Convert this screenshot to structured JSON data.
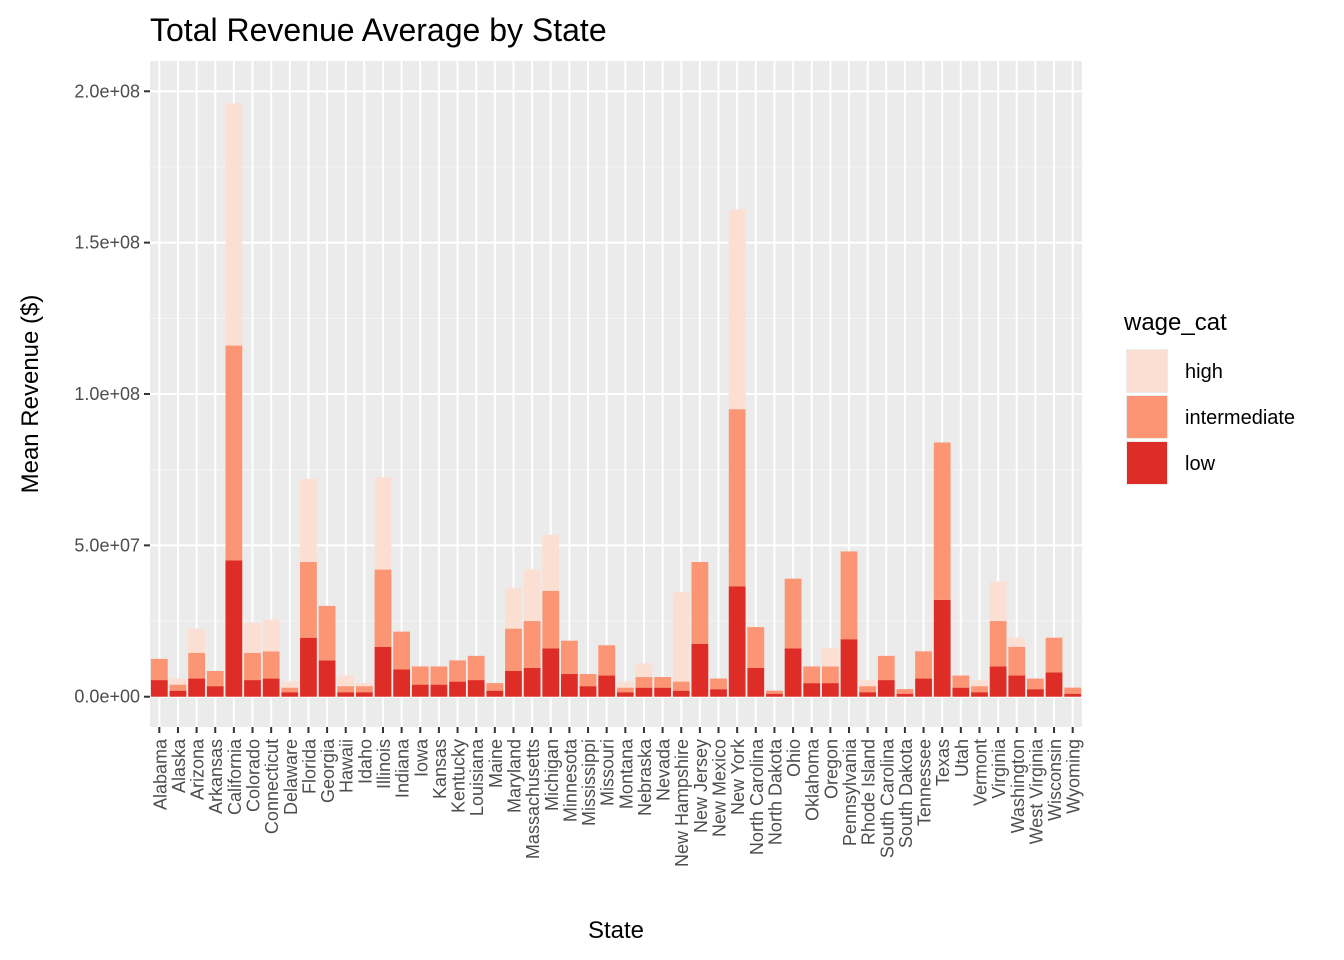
{
  "chart_data": {
    "type": "bar",
    "stacked": true,
    "title": "Total Revenue Average by State",
    "xlabel": "State",
    "ylabel": "Mean Revenue ($)",
    "ylim": [
      -10000000,
      210000000
    ],
    "y_ticks": [
      0,
      50000000,
      100000000,
      150000000,
      200000000
    ],
    "y_tick_labels": [
      "0.0e+00",
      "5.0e+07",
      "1.0e+08",
      "1.5e+08",
      "2.0e+08"
    ],
    "grid": true,
    "legend": {
      "title": "wage_cat",
      "position": "right",
      "entries": [
        "high",
        "intermediate",
        "low"
      ]
    },
    "colors": {
      "high": "#fcdfd3",
      "intermediate": "#fb9574",
      "low": "#de2d26",
      "panel": "#ebebeb",
      "grid_major": "#ffffff"
    },
    "categories": [
      "Alabama",
      "Alaska",
      "Arizona",
      "Arkansas",
      "California",
      "Colorado",
      "Connecticut",
      "Delaware",
      "Florida",
      "Georgia",
      "Hawaii",
      "Idaho",
      "Illinois",
      "Indiana",
      "Iowa",
      "Kansas",
      "Kentucky",
      "Louisiana",
      "Maine",
      "Maryland",
      "Massachusetts",
      "Michigan",
      "Minnesota",
      "Mississippi",
      "Missouri",
      "Montana",
      "Nebraska",
      "Nevada",
      "New Hampshire",
      "New Jersey",
      "New Mexico",
      "New York",
      "North Carolina",
      "North Dakota",
      "Ohio",
      "Oklahoma",
      "Oregon",
      "Pennsylvania",
      "Rhode Island",
      "South Carolina",
      "South Dakota",
      "Tennessee",
      "Texas",
      "Utah",
      "Vermont",
      "Virginia",
      "Washington",
      "West Virginia",
      "Wisconsin",
      "Wyoming"
    ],
    "series": [
      {
        "name": "low",
        "values": [
          5500000,
          2000000,
          6000000,
          3500000,
          45000000,
          5500000,
          6000000,
          1500000,
          19500000,
          12000000,
          1500000,
          1500000,
          16500000,
          9000000,
          4000000,
          4000000,
          5000000,
          5500000,
          2000000,
          8500000,
          9500000,
          16000000,
          7500000,
          3500000,
          7000000,
          1500000,
          3000000,
          3000000,
          2000000,
          17500000,
          2500000,
          36500000,
          9500000,
          1000000,
          16000000,
          4500000,
          4500000,
          19000000,
          1500000,
          5500000,
          1000000,
          6000000,
          32000000,
          3000000,
          1500000,
          10000000,
          7000000,
          2500000,
          8000000,
          1000000
        ]
      },
      {
        "name": "intermediate",
        "values": [
          7000000,
          2000000,
          8500000,
          5000000,
          71000000,
          9000000,
          9000000,
          1500000,
          25000000,
          18000000,
          2000000,
          2000000,
          25500000,
          12500000,
          6000000,
          6000000,
          7000000,
          8000000,
          2500000,
          14000000,
          15500000,
          19000000,
          11000000,
          4000000,
          10000000,
          1500000,
          3500000,
          3500000,
          3000000,
          27000000,
          3500000,
          58500000,
          13500000,
          1000000,
          23000000,
          5500000,
          5500000,
          29000000,
          2000000,
          8000000,
          1500000,
          9000000,
          52000000,
          4000000,
          2000000,
          15000000,
          9500000,
          3500000,
          11500000,
          2000000
        ]
      },
      {
        "name": "high",
        "values": [
          0,
          2000000,
          8000000,
          0,
          80000000,
          10000000,
          10500000,
          2000000,
          27500000,
          0,
          3500000,
          1000000,
          30500000,
          0,
          0,
          0,
          0,
          0,
          0,
          13500000,
          17000000,
          18500000,
          0,
          0,
          0,
          2000000,
          4500000,
          0,
          29500000,
          0,
          0,
          66000000,
          0,
          0,
          0,
          0,
          6000000,
          0,
          2000000,
          0,
          0,
          0,
          0,
          0,
          2000000,
          13000000,
          3000000,
          0,
          0,
          0
        ]
      }
    ]
  }
}
